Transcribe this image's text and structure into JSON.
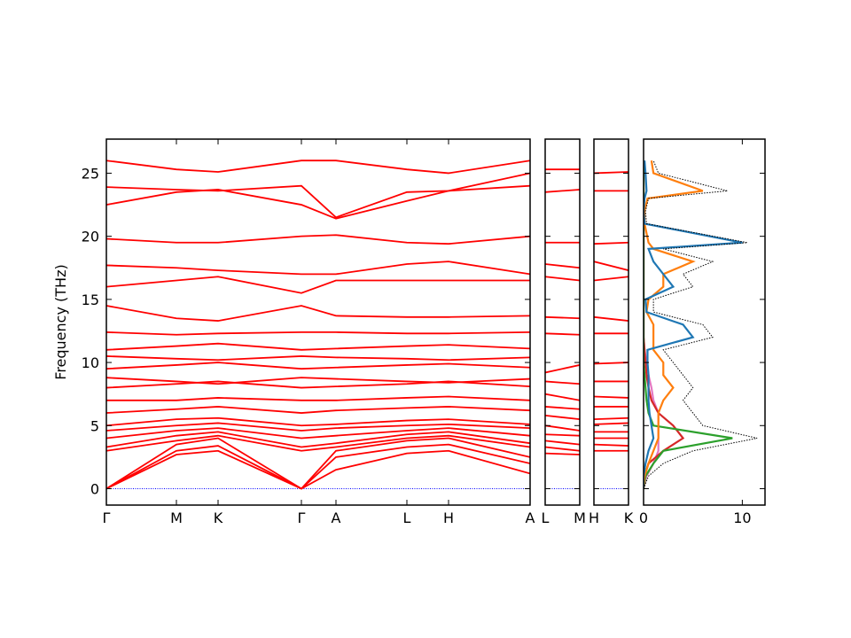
{
  "chart_data": [
    {
      "type": "line",
      "ylabel": "Frequency (THz)",
      "color": "#ff0000",
      "ylim": [
        -1.3,
        27.7
      ],
      "yticks": [
        0,
        5,
        10,
        15,
        20,
        25
      ],
      "xlim": [
        0,
        4.78
      ],
      "xticks": [
        {
          "value": 0,
          "label": "Γ"
        },
        {
          "value": 0.79,
          "label": "M"
        },
        {
          "value": 1.26,
          "label": "K"
        },
        {
          "value": 2.2,
          "label": "Γ"
        },
        {
          "value": 2.59,
          "label": "A"
        },
        {
          "value": 3.39,
          "label": "L"
        },
        {
          "value": 3.86,
          "label": "H"
        },
        {
          "value": 4.78,
          "label": "A"
        }
      ],
      "x": [
        0,
        0.79,
        1.26,
        2.2,
        2.59,
        3.39,
        3.86,
        4.78
      ],
      "hline": {
        "value": 0,
        "color": "#0000ff"
      },
      "series": [
        {
          "values": [
            0,
            2.7,
            3.0,
            0,
            1.5,
            2.8,
            3.0,
            1.2
          ]
        },
        {
          "values": [
            0,
            3.0,
            3.4,
            0,
            2.5,
            3.3,
            3.5,
            2.0
          ]
        },
        {
          "values": [
            0,
            3.5,
            4.0,
            0,
            3.0,
            3.8,
            4.0,
            2.5
          ]
        },
        {
          "values": [
            3.0,
            3.8,
            4.2,
            3.0,
            3.3,
            4.0,
            4.2,
            3.3
          ]
        },
        {
          "values": [
            3.3,
            4.2,
            4.5,
            3.3,
            3.6,
            4.3,
            4.5,
            3.6
          ]
        },
        {
          "values": [
            4.0,
            4.6,
            4.8,
            4.0,
            4.2,
            4.6,
            4.8,
            4.2
          ]
        },
        {
          "values": [
            4.6,
            5.0,
            5.2,
            4.6,
            4.8,
            5.0,
            5.1,
            4.8
          ]
        },
        {
          "values": [
            5.0,
            5.5,
            5.6,
            5.0,
            5.1,
            5.4,
            5.5,
            5.1
          ]
        },
        {
          "values": [
            6.0,
            6.3,
            6.5,
            6.0,
            6.2,
            6.4,
            6.5,
            6.2
          ]
        },
        {
          "values": [
            7.0,
            7.0,
            7.2,
            7.0,
            7.0,
            7.2,
            7.3,
            7.0
          ]
        },
        {
          "values": [
            8.0,
            8.3,
            8.5,
            8.0,
            8.1,
            8.3,
            8.5,
            8.1
          ]
        },
        {
          "values": [
            8.8,
            8.5,
            8.3,
            8.8,
            8.7,
            8.5,
            8.4,
            8.7
          ]
        },
        {
          "values": [
            9.5,
            9.8,
            10.0,
            9.5,
            9.6,
            9.8,
            9.9,
            9.6
          ]
        },
        {
          "values": [
            10.5,
            10.3,
            10.2,
            10.5,
            10.4,
            10.3,
            10.2,
            10.4
          ]
        },
        {
          "values": [
            11.0,
            11.3,
            11.5,
            11.0,
            11.1,
            11.3,
            11.4,
            11.1
          ]
        },
        {
          "values": [
            12.4,
            12.2,
            12.3,
            12.4,
            12.4,
            12.3,
            12.3,
            12.4
          ]
        },
        {
          "values": [
            14.5,
            13.5,
            13.3,
            14.5,
            13.7,
            13.6,
            13.6,
            13.7
          ]
        },
        {
          "values": [
            16.0,
            16.5,
            16.8,
            15.5,
            16.5,
            16.5,
            16.5,
            16.5
          ]
        },
        {
          "values": [
            17.7,
            17.5,
            17.3,
            17.0,
            17.0,
            17.8,
            18.0,
            17.0
          ]
        },
        {
          "values": [
            19.8,
            19.5,
            19.5,
            20.0,
            20.1,
            19.5,
            19.4,
            20.0
          ]
        },
        {
          "values": [
            23.9,
            23.7,
            23.6,
            24.0,
            21.5,
            23.5,
            23.6,
            25.0
          ]
        },
        {
          "values": [
            22.5,
            23.5,
            23.7,
            22.5,
            21.4,
            22.8,
            23.6,
            24.0
          ]
        },
        {
          "values": [
            26.0,
            25.3,
            25.1,
            26.0,
            26.0,
            25.3,
            25.0,
            26.0
          ]
        }
      ]
    },
    {
      "type": "line",
      "color": "#ff0000",
      "ylim": [
        -1.3,
        27.7
      ],
      "yticks": [
        0,
        5,
        10,
        15,
        20,
        25
      ],
      "xlim": [
        0,
        0.39
      ],
      "xticks": [
        {
          "value": 0,
          "label": "L"
        },
        {
          "value": 0.39,
          "label": "M"
        }
      ],
      "x": [
        0,
        0.39
      ],
      "hline": {
        "value": 0,
        "color": "#0000ff"
      },
      "series": [
        {
          "values": [
            2.8,
            2.7
          ]
        },
        {
          "values": [
            3.3,
            3.0
          ]
        },
        {
          "values": [
            3.8,
            3.5
          ]
        },
        {
          "values": [
            4.3,
            4.2
          ]
        },
        {
          "values": [
            5.0,
            4.6
          ]
        },
        {
          "values": [
            5.8,
            5.5
          ]
        },
        {
          "values": [
            6.5,
            6.3
          ]
        },
        {
          "values": [
            7.5,
            7.0
          ]
        },
        {
          "values": [
            8.5,
            8.3
          ]
        },
        {
          "values": [
            9.2,
            9.8
          ]
        },
        {
          "values": [
            12.3,
            12.2
          ]
        },
        {
          "values": [
            13.6,
            13.5
          ]
        },
        {
          "values": [
            16.8,
            16.5
          ]
        },
        {
          "values": [
            17.8,
            17.5
          ]
        },
        {
          "values": [
            19.5,
            19.5
          ]
        },
        {
          "values": [
            23.5,
            23.7
          ]
        },
        {
          "values": [
            25.3,
            25.3
          ]
        }
      ]
    },
    {
      "type": "line",
      "color": "#ff0000",
      "ylim": [
        -1.3,
        27.7
      ],
      "yticks": [
        0,
        5,
        10,
        15,
        20,
        25
      ],
      "xlim": [
        0,
        0.39
      ],
      "xticks": [
        {
          "value": 0,
          "label": "H"
        },
        {
          "value": 0.39,
          "label": "K"
        }
      ],
      "x": [
        0,
        0.39
      ],
      "hline": {
        "value": 0,
        "color": "#0000ff"
      },
      "series": [
        {
          "values": [
            3.0,
            3.0
          ]
        },
        {
          "values": [
            3.5,
            3.4
          ]
        },
        {
          "values": [
            4.0,
            4.0
          ]
        },
        {
          "values": [
            4.5,
            4.5
          ]
        },
        {
          "values": [
            5.1,
            5.2
          ]
        },
        {
          "values": [
            5.5,
            5.6
          ]
        },
        {
          "values": [
            6.5,
            6.5
          ]
        },
        {
          "values": [
            7.3,
            7.2
          ]
        },
        {
          "values": [
            8.5,
            8.5
          ]
        },
        {
          "values": [
            9.9,
            10.0
          ]
        },
        {
          "values": [
            12.3,
            12.3
          ]
        },
        {
          "values": [
            13.6,
            13.3
          ]
        },
        {
          "values": [
            16.5,
            16.8
          ]
        },
        {
          "values": [
            18.0,
            17.3
          ]
        },
        {
          "values": [
            19.4,
            19.5
          ]
        },
        {
          "values": [
            23.6,
            23.6
          ]
        },
        {
          "values": [
            25.0,
            25.1
          ]
        }
      ]
    },
    {
      "type": "dos",
      "ylim": [
        -1.3,
        27.7
      ],
      "yticks": [
        0,
        5,
        10,
        15,
        20,
        25
      ],
      "xlim": [
        0,
        12.3
      ],
      "xticks": [
        0,
        10
      ],
      "y": [
        0,
        1,
        2,
        3,
        4,
        5,
        6,
        7,
        8,
        9,
        10,
        11,
        12,
        13,
        14,
        15,
        16,
        17,
        18,
        19,
        19.5,
        21,
        22,
        23,
        23.6,
        25,
        26
      ],
      "series": [
        {
          "color": "#000000",
          "dash": true,
          "values": [
            0,
            0.5,
            2,
            5,
            11.5,
            6,
            5,
            4,
            5,
            4,
            3,
            2,
            7,
            6,
            1,
            1,
            5,
            4,
            7,
            2,
            10.5,
            0.3,
            0.2,
            0.5,
            8.5,
            1.5,
            1
          ]
        },
        {
          "color": "#1f77b4",
          "values": [
            0,
            0,
            0.2,
            0.5,
            1,
            0.8,
            0.6,
            0.5,
            0.5,
            0.5,
            0.4,
            0.4,
            5,
            4,
            0.3,
            0.2,
            3,
            2,
            1,
            0.5,
            10,
            0.1,
            0,
            0.1,
            0.3,
            0.2,
            0.1
          ]
        },
        {
          "color": "#ff7f0e",
          "values": [
            0,
            0.1,
            0.5,
            1,
            1.5,
            1.5,
            1.5,
            2,
            3,
            2,
            2,
            1,
            1,
            1,
            0.3,
            0.5,
            2,
            2,
            5,
            1,
            0.5,
            0.1,
            0.1,
            0.4,
            6,
            1,
            0.8
          ]
        },
        {
          "color": "#2ca02c",
          "values": [
            0,
            0.2,
            1,
            2,
            9,
            1,
            0.5,
            0.3,
            0.2,
            0.1,
            0,
            0,
            0,
            0,
            0,
            0,
            0,
            0,
            0,
            0,
            0,
            0,
            0,
            0,
            0,
            0,
            0
          ]
        },
        {
          "color": "#d62728",
          "values": [
            0,
            0.1,
            0.5,
            2,
            4,
            3,
            1.5,
            0.8,
            0.5,
            0.3,
            0.2,
            0.1,
            0,
            0,
            0,
            0,
            0,
            0,
            0,
            0,
            0,
            0,
            0,
            0,
            0,
            0,
            0
          ]
        },
        {
          "color": "#e377c2",
          "values": [
            0,
            0.3,
            1,
            1.5,
            1.5,
            1.5,
            1.5,
            1,
            0.8,
            0.5,
            0.3,
            0.1,
            0,
            0,
            0,
            0,
            0,
            0,
            0,
            0,
            0,
            0,
            0,
            0,
            0,
            0,
            0
          ]
        }
      ]
    }
  ]
}
